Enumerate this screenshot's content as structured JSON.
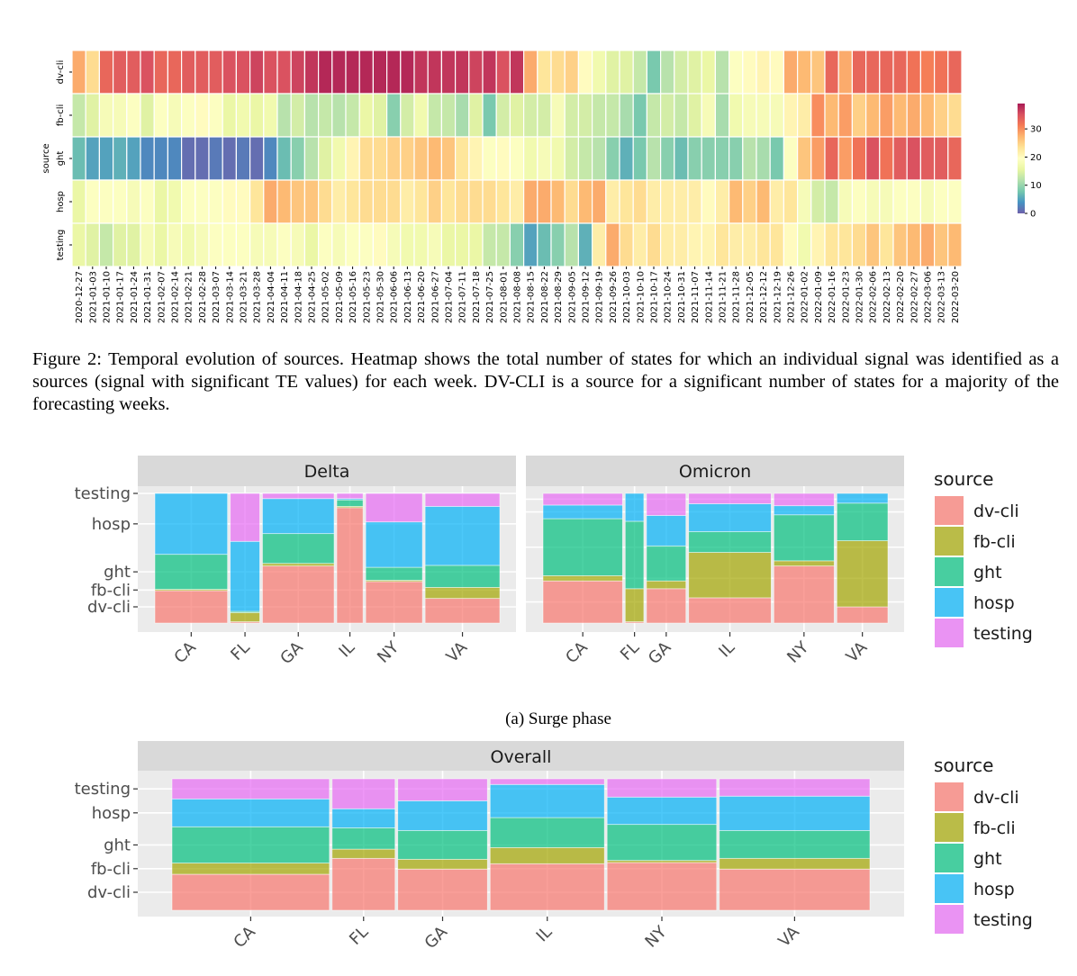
{
  "figure_caption": "Figure 2: Temporal evolution of sources. Heatmap shows the total number of states for which an individual signal was identified as a sources (signal with significant TE values) for each week. DV-CLI is a source for a significant number of states for a majority of the forecasting weeks.",
  "subfigure_caption": "(a) Surge phase",
  "chart_data": [
    {
      "type": "heatmap",
      "ylabel": "source",
      "rows": [
        "dv-cli",
        "fb-cli",
        "ght",
        "hosp",
        "testing"
      ],
      "colormap": "Spectral_r",
      "colorbar": {
        "ticks": [
          0,
          10,
          20,
          30
        ],
        "range": [
          0,
          39
        ]
      },
      "x": [
        "2020-12-27",
        "2021-01-03",
        "2021-01-10",
        "2021-01-17",
        "2021-01-24",
        "2021-01-31",
        "2021-02-07",
        "2021-02-14",
        "2021-02-21",
        "2021-02-28",
        "2021-03-07",
        "2021-03-14",
        "2021-03-21",
        "2021-03-28",
        "2021-04-04",
        "2021-04-11",
        "2021-04-18",
        "2021-04-25",
        "2021-05-02",
        "2021-05-09",
        "2021-05-16",
        "2021-05-23",
        "2021-05-30",
        "2021-06-06",
        "2021-06-13",
        "2021-06-20",
        "2021-06-27",
        "2021-07-04",
        "2021-07-11",
        "2021-07-18",
        "2021-07-25",
        "2021-08-01",
        "2021-08-08",
        "2021-08-15",
        "2021-08-22",
        "2021-08-29",
        "2021-09-05",
        "2021-09-12",
        "2021-09-19",
        "2021-09-26",
        "2021-10-03",
        "2021-10-10",
        "2021-10-17",
        "2021-10-24",
        "2021-10-31",
        "2021-11-07",
        "2021-11-14",
        "2021-11-21",
        "2021-11-28",
        "2021-12-05",
        "2021-12-12",
        "2021-12-19",
        "2021-12-26",
        "2022-01-02",
        "2022-01-09",
        "2022-01-16",
        "2022-01-23",
        "2022-01-30",
        "2022-02-06",
        "2022-02-13",
        "2022-02-20",
        "2022-02-27",
        "2022-03-06",
        "2022-03-13",
        "2022-03-20"
      ],
      "values": [
        [
          28,
          24,
          33,
          34,
          34,
          35,
          33,
          33,
          34,
          34,
          34,
          35,
          35,
          36,
          35,
          35,
          36,
          37,
          38,
          38,
          38,
          38,
          38,
          38,
          38,
          37,
          37,
          37,
          37,
          36,
          37,
          35,
          37,
          28,
          23,
          24,
          25,
          20,
          17,
          15,
          15,
          13,
          8,
          12,
          14,
          15,
          16,
          12,
          19,
          20,
          21,
          20,
          28,
          27,
          26,
          33,
          28,
          33,
          33,
          33,
          33,
          32,
          31,
          32,
          33
        ],
        [
          13,
          15,
          18,
          18,
          19,
          15,
          19,
          18,
          19,
          20,
          19,
          16,
          17,
          16,
          17,
          12,
          14,
          12,
          13,
          12,
          13,
          16,
          15,
          9,
          14,
          17,
          13,
          13,
          11,
          15,
          8,
          14,
          15,
          14,
          14,
          18,
          14,
          14,
          13,
          13,
          11,
          8,
          13,
          14,
          13,
          15,
          18,
          11,
          17,
          18,
          18,
          18,
          21,
          22,
          30,
          27,
          29,
          25,
          27,
          29,
          27,
          28,
          27,
          25,
          24
        ],
        [
          7,
          5,
          5,
          6,
          5,
          3,
          3,
          3,
          1,
          1,
          2,
          1,
          2,
          1,
          3,
          7,
          9,
          12,
          15,
          17,
          21,
          24,
          24,
          25,
          25,
          26,
          27,
          26,
          23,
          21,
          19,
          20,
          19,
          17,
          18,
          17,
          14,
          13,
          12,
          9,
          6,
          8,
          12,
          9,
          7,
          9,
          9,
          9,
          9,
          12,
          11,
          8,
          19,
          26,
          29,
          33,
          29,
          32,
          35,
          32,
          34,
          35,
          34,
          34,
          33
        ],
        [
          16,
          19,
          19,
          19,
          18,
          19,
          16,
          17,
          19,
          19,
          19,
          20,
          20,
          23,
          28,
          27,
          26,
          26,
          24,
          22,
          23,
          24,
          24,
          24,
          22,
          23,
          25,
          23,
          24,
          24,
          24,
          23,
          22,
          28,
          28,
          27,
          24,
          27,
          28,
          22,
          23,
          24,
          22,
          22,
          22,
          22,
          20,
          22,
          27,
          25,
          27,
          22,
          23,
          18,
          14,
          13,
          18,
          19,
          18,
          18,
          19,
          19,
          18,
          19,
          19
        ],
        [
          16,
          15,
          13,
          15,
          15,
          18,
          16,
          18,
          17,
          18,
          19,
          19,
          19,
          18,
          18,
          19,
          18,
          16,
          19,
          18,
          19,
          19,
          20,
          18,
          17,
          17,
          18,
          16,
          16,
          16,
          13,
          13,
          9,
          5,
          7,
          9,
          12,
          6,
          22,
          28,
          24,
          22,
          24,
          22,
          22,
          21,
          21,
          23,
          22,
          22,
          23,
          23,
          20,
          17,
          21,
          23,
          23,
          24,
          26,
          23,
          26,
          27,
          28,
          26,
          27
        ]
      ]
    },
    {
      "type": "mosaic",
      "title": "Delta",
      "legend_title": "source",
      "categories": [
        "dv-cli",
        "fb-cli",
        "ght",
        "hosp",
        "testing"
      ],
      "colors": [
        "#F8766D",
        "#A3A500",
        "#00BF7D",
        "#00B0F6",
        "#E76BF3"
      ],
      "y_tick_labels": [
        "dv-cli",
        "fb-cli",
        "ght",
        "hosp",
        "testing"
      ],
      "states": [
        {
          "state": "CA",
          "width_share": 0.219,
          "shares": [
            0.25,
            0.01,
            0.27,
            0.47,
            0.0
          ]
        },
        {
          "state": "FL",
          "width_share": 0.089,
          "shares": [
            0.01,
            0.07,
            0.01,
            0.54,
            0.37
          ]
        },
        {
          "state": "GA",
          "width_share": 0.216,
          "shares": [
            0.44,
            0.02,
            0.23,
            0.27,
            0.04
          ]
        },
        {
          "state": "IL",
          "width_share": 0.079,
          "shares": [
            0.89,
            0.01,
            0.05,
            0.01,
            0.04
          ]
        },
        {
          "state": "NY",
          "width_share": 0.171,
          "shares": [
            0.32,
            0.01,
            0.1,
            0.35,
            0.22
          ]
        },
        {
          "state": "VA",
          "width_share": 0.225,
          "shares": [
            0.19,
            0.085,
            0.17,
            0.455,
            0.1
          ]
        }
      ]
    },
    {
      "type": "mosaic",
      "title": "Omicron",
      "categories": [
        "dv-cli",
        "fb-cli",
        "ght",
        "hosp",
        "testing"
      ],
      "colors": [
        "#F8766D",
        "#A3A500",
        "#00BF7D",
        "#00B0F6",
        "#E76BF3"
      ],
      "states": [
        {
          "state": "CA",
          "width_share": 0.24,
          "shares": [
            0.325,
            0.04,
            0.44,
            0.105,
            0.09
          ]
        },
        {
          "state": "FL",
          "width_share": 0.056,
          "shares": [
            0.01,
            0.255,
            0.52,
            0.215,
            0.0
          ]
        },
        {
          "state": "GA",
          "width_share": 0.119,
          "shares": [
            0.265,
            0.06,
            0.27,
            0.235,
            0.17
          ]
        },
        {
          "state": "IL",
          "width_share": 0.249,
          "shares": [
            0.195,
            0.35,
            0.16,
            0.215,
            0.08
          ]
        },
        {
          "state": "NY",
          "width_share": 0.182,
          "shares": [
            0.44,
            0.04,
            0.355,
            0.07,
            0.095
          ]
        },
        {
          "state": "VA",
          "width_share": 0.154,
          "shares": [
            0.125,
            0.51,
            0.29,
            0.075,
            0.0
          ]
        }
      ]
    },
    {
      "type": "mosaic",
      "title": "Overall",
      "legend_title": "source",
      "categories": [
        "dv-cli",
        "fb-cli",
        "ght",
        "hosp",
        "testing"
      ],
      "colors": [
        "#F8766D",
        "#A3A500",
        "#00BF7D",
        "#00B0F6",
        "#E76BF3"
      ],
      "y_tick_labels": [
        "dv-cli",
        "fb-cli",
        "ght",
        "hosp",
        "testing"
      ],
      "states": [
        {
          "state": "CA",
          "width_share": 0.23,
          "shares": [
            0.274,
            0.085,
            0.276,
            0.212,
            0.153
          ]
        },
        {
          "state": "FL",
          "width_share": 0.092,
          "shares": [
            0.395,
            0.07,
            0.162,
            0.145,
            0.228
          ]
        },
        {
          "state": "GA",
          "width_share": 0.131,
          "shares": [
            0.313,
            0.075,
            0.219,
            0.226,
            0.167
          ]
        },
        {
          "state": "IL",
          "width_share": 0.167,
          "shares": [
            0.354,
            0.123,
            0.228,
            0.252,
            0.043
          ]
        },
        {
          "state": "NY",
          "width_share": 0.16,
          "shares": [
            0.363,
            0.016,
            0.274,
            0.208,
            0.139
          ]
        },
        {
          "state": "VA",
          "width_share": 0.22,
          "shares": [
            0.313,
            0.082,
            0.212,
            0.261,
            0.132
          ]
        }
      ]
    }
  ]
}
